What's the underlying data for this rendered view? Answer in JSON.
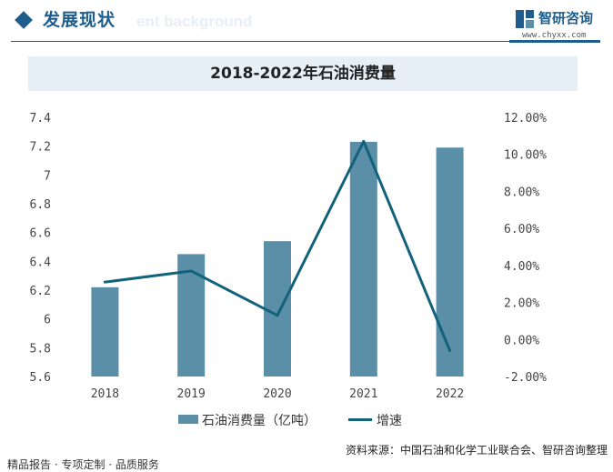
{
  "header": {
    "section_title": "发展现状",
    "ghost_text": "ent background",
    "brand_name": "智研咨询",
    "brand_url": "www.chyxx.com"
  },
  "chart_data": {
    "type": "bar",
    "title": "2018-2022年石油消费量",
    "categories": [
      "2018",
      "2019",
      "2020",
      "2021",
      "2022"
    ],
    "series": [
      {
        "name": "石油消费量（亿吨）",
        "type": "bar",
        "axis": "left",
        "values": [
          6.22,
          6.45,
          6.54,
          7.23,
          7.19
        ]
      },
      {
        "name": "增速",
        "type": "line",
        "axis": "right",
        "values": [
          3.1,
          3.7,
          1.3,
          10.7,
          -0.6
        ]
      }
    ],
    "y_left": {
      "min": 5.6,
      "max": 7.4,
      "ticks": [
        "5.6",
        "5.8",
        "6",
        "6.2",
        "6.4",
        "6.6",
        "6.8",
        "7",
        "7.2",
        "7.4"
      ]
    },
    "y_right": {
      "min": -2,
      "max": 12,
      "ticks": [
        "-2.00%",
        "0.00%",
        "2.00%",
        "4.00%",
        "6.00%",
        "8.00%",
        "10.00%",
        "12.00%"
      ]
    },
    "grid": false,
    "legend_position": "bottom",
    "colors": {
      "bar": "#5b8fa8",
      "line": "#13627c"
    }
  },
  "legend": {
    "bar_label": "石油消费量（亿吨）",
    "line_label": "增速"
  },
  "footer": {
    "left_text": "精品报告 · 专项定制 · 品质服务",
    "source_text": "资料来源：中国石油和化学工业联合会、智研咨询整理"
  },
  "watermark": "智研咨询"
}
